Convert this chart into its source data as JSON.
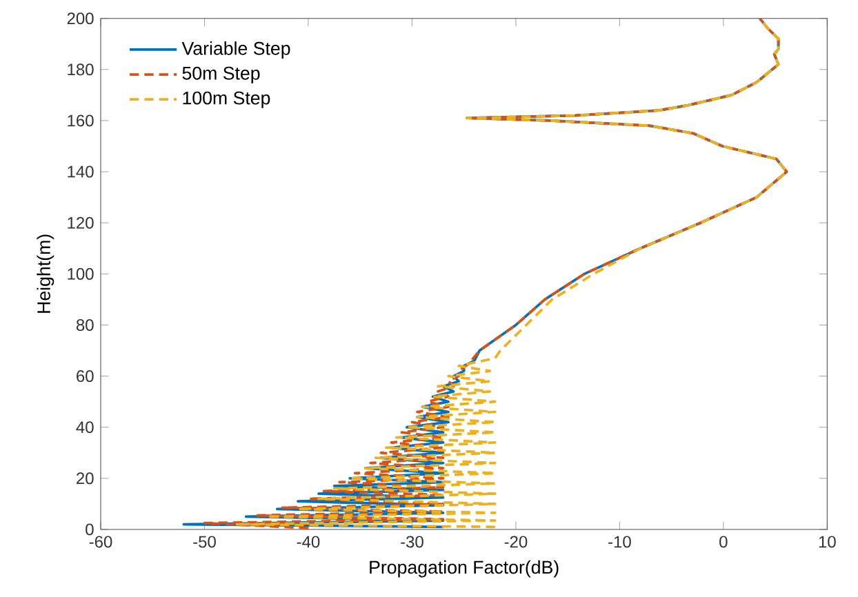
{
  "chart_data": {
    "type": "line",
    "xlabel": "Propagation Factor(dB)",
    "ylabel": "Height(m)",
    "xlim": [
      -60,
      10
    ],
    "ylim": [
      0,
      200
    ],
    "xticks": [
      -60,
      -50,
      -40,
      -30,
      -20,
      -10,
      0,
      10
    ],
    "yticks": [
      0,
      20,
      40,
      60,
      80,
      100,
      120,
      140,
      160,
      180,
      200
    ],
    "legend": "top left",
    "series": [
      {
        "name": "Variable Step",
        "color": "#0072bd",
        "line_style": "solid",
        "x": [
          -27,
          -52,
          -27,
          -46,
          -27,
          -43,
          -27,
          -41,
          -27,
          -39,
          -27,
          -37.5,
          -27,
          -36,
          -27,
          -34.5,
          -27,
          -33,
          -27,
          -32,
          -27,
          -31,
          -27,
          -30.5,
          -26.5,
          -29.5,
          -26.5,
          -29,
          -26.5,
          -28,
          -26,
          -27,
          -25.5,
          -26,
          -25,
          -25,
          -24,
          -23.5,
          -20,
          -17.2,
          -13.4,
          -8,
          -2.2,
          3.2,
          6.1,
          5.1,
          -0.1,
          -2.9,
          -7.1,
          -16.7,
          -24.7,
          -14.3,
          -6.2,
          -3.4,
          0.8,
          3.2,
          4.7,
          5.3,
          4.9,
          5.3,
          5.3,
          4.3,
          3.5
        ],
        "values": [
          1,
          2,
          3.5,
          5,
          6.5,
          8,
          9.5,
          11,
          12.5,
          14,
          15.5,
          17,
          18.5,
          20,
          22,
          24,
          26,
          28,
          30,
          32,
          34,
          36,
          38,
          40,
          42,
          44,
          46,
          48,
          50,
          52,
          54,
          56,
          58,
          60,
          62,
          64,
          66,
          70,
          80,
          90,
          100,
          110,
          120,
          130,
          140,
          145,
          150,
          155,
          158,
          160,
          161,
          162,
          164,
          166,
          170,
          175,
          180,
          182,
          186,
          188,
          192,
          196,
          200
        ]
      },
      {
        "name": "50m Step",
        "color": "#d95319",
        "line_style": "dashed",
        "x": [
          -40,
          -50,
          -27,
          -45,
          -27,
          -42.5,
          -27,
          -40,
          -27,
          -38.5,
          -27,
          -37,
          -27,
          -35.5,
          -27,
          -34,
          -27,
          -33,
          -27,
          -32,
          -27,
          -31,
          -27,
          -30,
          -26.5,
          -29.5,
          -26.5,
          -28.5,
          -26.5,
          -27.5,
          -26,
          -26.5,
          -25.5,
          -25.5,
          -24.5,
          -23.5,
          -20,
          -17.2,
          -13.4,
          -8,
          -2.2,
          3.2,
          6.1,
          5.1,
          -0.1,
          -2.9,
          -7.1,
          -16.7,
          -24.7,
          -14.3,
          -6.2,
          -3.4,
          0.8,
          3.2,
          4.7,
          5.3,
          4.9,
          5.3,
          5.3,
          4.3,
          3.5
        ],
        "values": [
          0.5,
          2.5,
          4,
          5.5,
          7,
          8.5,
          10,
          12,
          13.5,
          15,
          16.5,
          18.5,
          20,
          22,
          24,
          26,
          28,
          30,
          32,
          34,
          36,
          38,
          40,
          42,
          44,
          46,
          48,
          50,
          52,
          54,
          56,
          58,
          60,
          62,
          65,
          70,
          80,
          90,
          100,
          110,
          120,
          130,
          140,
          145,
          150,
          155,
          158,
          160,
          161,
          162,
          164,
          166,
          170,
          175,
          180,
          182,
          186,
          188,
          192,
          196,
          200
        ]
      },
      {
        "name": "100m Step",
        "color": "#edb120",
        "line_style": "dashed",
        "x": [
          -22,
          -47,
          -22,
          -44,
          -22,
          -41,
          -22,
          -39,
          -22,
          -37.5,
          -22,
          -36,
          -22,
          -34.5,
          -22,
          -33.5,
          -22,
          -32.5,
          -22,
          -31.5,
          -22,
          -30.5,
          -22,
          -29.5,
          -22,
          -29,
          -22,
          -28,
          -22.5,
          -27.5,
          -22.5,
          -26.5,
          -22.5,
          -25.5,
          -22,
          -21.5,
          -19,
          -16.5,
          -12.5,
          -8,
          -2.2,
          3.2,
          6.1,
          5.1,
          -0.1,
          -2.9,
          -7.1,
          -16.7,
          -24.7,
          -14.3,
          -6.2,
          -3.4,
          0.8,
          3.2,
          4.7,
          5.3,
          4.9,
          5.3,
          5.3,
          4.3,
          3.5
        ],
        "values": [
          1,
          2,
          3.5,
          5,
          6.5,
          8,
          10,
          12,
          14,
          16,
          18,
          20,
          22,
          24,
          26,
          28,
          30,
          32,
          34,
          36,
          38,
          40,
          42,
          44,
          46,
          48,
          50,
          52,
          54,
          56,
          58,
          60,
          62,
          64,
          67,
          70,
          80,
          90,
          100,
          110,
          120,
          130,
          140,
          145,
          150,
          155,
          158,
          160,
          161,
          162,
          164,
          166,
          170,
          175,
          180,
          182,
          186,
          188,
          192,
          196,
          200
        ]
      }
    ]
  }
}
